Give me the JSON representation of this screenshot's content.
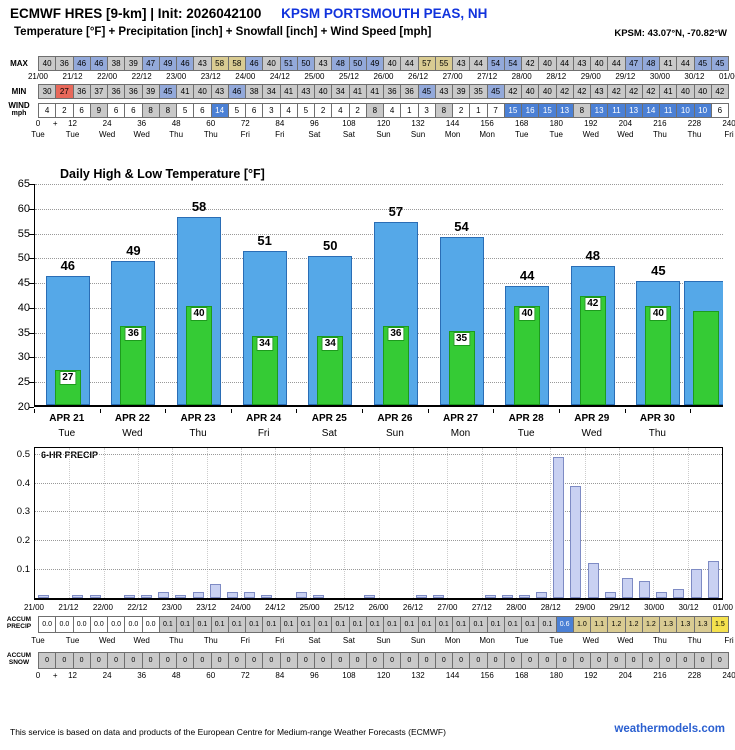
{
  "header": {
    "title": "ECMWF HRES [9-km] | Init: 2026042100",
    "station": "KPSM PORTSMOUTH PEAS, NH",
    "subtitle": "Temperature [°F] + Precipitation [inch] + Snowfall [inch] + Wind Speed [mph]",
    "coords": "KPSM: 43.07°N, -70.82°W"
  },
  "strip": {
    "max_label": "MAX",
    "min_label": "MIN",
    "wind_label": "WIND",
    "wind_unit": "mph",
    "max": [
      40,
      36,
      46,
      46,
      38,
      39,
      47,
      49,
      46,
      43,
      58,
      58,
      46,
      40,
      51,
      50,
      43,
      48,
      50,
      49,
      40,
      44,
      57,
      55,
      43,
      44,
      54,
      54,
      42,
      40,
      44,
      43,
      40,
      44,
      47,
      48,
      41,
      44,
      45,
      45
    ],
    "min": [
      30,
      27,
      36,
      37,
      36,
      36,
      39,
      45,
      41,
      40,
      43,
      46,
      38,
      34,
      41,
      43,
      40,
      34,
      41,
      41,
      36,
      36,
      45,
      43,
      39,
      35,
      45,
      42,
      40,
      40,
      42,
      42,
      43,
      42,
      42,
      42,
      41,
      40,
      40,
      42
    ],
    "wind": [
      4,
      2,
      6,
      9,
      6,
      6,
      8,
      8,
      5,
      6,
      14,
      5,
      6,
      3,
      4,
      5,
      2,
      4,
      2,
      8,
      4,
      1,
      3,
      8,
      2,
      1,
      7,
      15,
      16,
      15,
      13,
      8,
      13,
      11,
      13,
      14,
      11,
      10,
      10,
      6
    ],
    "time_labels": [
      "21/00",
      "21/12",
      "22/00",
      "22/12",
      "23/00",
      "23/12",
      "24/00",
      "24/12",
      "25/00",
      "25/12",
      "26/00",
      "26/12",
      "27/00",
      "27/12",
      "28/00",
      "28/12",
      "29/00",
      "29/12",
      "30/00",
      "30/12",
      "01/00"
    ],
    "hour_labels": [
      "0",
      "+",
      "12",
      "24",
      "36",
      "48",
      "60",
      "72",
      "84",
      "96",
      "108",
      "120",
      "132",
      "144",
      "156",
      "168",
      "180",
      "192",
      "204",
      "216",
      "228",
      "240"
    ],
    "day_labels": [
      "Tue",
      "Tue",
      "Wed",
      "Wed",
      "Thu",
      "Thu",
      "Fri",
      "Fri",
      "Sat",
      "Sat",
      "Sun",
      "Sun",
      "Mon",
      "Mon",
      "Tue",
      "Tue",
      "Wed",
      "Wed",
      "Thu",
      "Thu",
      "Fri"
    ]
  },
  "chart_data": [
    {
      "type": "bar",
      "title": "Daily High & Low Temperature [°F]",
      "categories": [
        "APR 21",
        "APR 22",
        "APR 23",
        "APR 24",
        "APR 25",
        "APR 26",
        "APR 27",
        "APR 28",
        "APR 29",
        "APR 30"
      ],
      "day_names": [
        "Tue",
        "Wed",
        "Thu",
        "Fri",
        "Sat",
        "Sun",
        "Mon",
        "Tue",
        "Wed",
        "Thu"
      ],
      "series": [
        {
          "name": "Daily High",
          "color": "#55a8e8",
          "values": [
            46,
            49,
            58,
            51,
            50,
            57,
            54,
            44,
            48,
            45
          ]
        },
        {
          "name": "Daily Low",
          "color": "#35cb35",
          "values": [
            27,
            36,
            40,
            34,
            34,
            36,
            35,
            40,
            42,
            40
          ]
        }
      ],
      "partial_day": {
        "high": 45,
        "low": 39
      },
      "xlabel": "",
      "ylabel": "",
      "ylim": [
        20,
        65
      ],
      "yticks": [
        20,
        25,
        30,
        35,
        40,
        45,
        50,
        55,
        60,
        65
      ],
      "grid": "dotted horizontal"
    },
    {
      "type": "bar",
      "title": "6-HR PRECIP",
      "x_labels": [
        "21/00",
        "21/12",
        "22/00",
        "22/12",
        "23/00",
        "23/12",
        "24/00",
        "24/12",
        "25/00",
        "25/12",
        "26/00",
        "26/12",
        "27/00",
        "27/12",
        "28/00",
        "28/12",
        "29/00",
        "29/12",
        "30/00",
        "30/12",
        "01/00"
      ],
      "values": [
        0.01,
        0,
        0.01,
        0.01,
        0,
        0.01,
        0.01,
        0.02,
        0.01,
        0.02,
        0.05,
        0.02,
        0.02,
        0.01,
        0,
        0.02,
        0.01,
        0,
        0,
        0.01,
        0,
        0,
        0.01,
        0.01,
        0,
        0,
        0.01,
        0.01,
        0.01,
        0.02,
        0.49,
        0.39,
        0.12,
        0.02,
        0.07,
        0.06,
        0.02,
        0.03,
        0.1,
        0.13
      ],
      "xlabel": "",
      "ylabel": "",
      "ylim": [
        0,
        0.52
      ],
      "yticks": [
        0.1,
        0.2,
        0.3,
        0.4,
        0.5
      ],
      "grid": "dotted"
    }
  ],
  "accum": {
    "precip_label_1": "ACCUM",
    "precip_label_2": "PRECIP",
    "snow_label_1": "ACCUM",
    "snow_label_2": "SNOW",
    "precip": [
      "0.0",
      "0.0",
      "0.0",
      "0.0",
      "0.0",
      "0.0",
      "0.0",
      "0.1",
      "0.1",
      "0.1",
      "0.1",
      "0.1",
      "0.1",
      "0.1",
      "0.1",
      "0.1",
      "0.1",
      "0.1",
      "0.1",
      "0.1",
      "0.1",
      "0.1",
      "0.1",
      "0.1",
      "0.1",
      "0.1",
      "0.1",
      "0.1",
      "0.1",
      "0.1",
      "0.6",
      "1.0",
      "1.1",
      "1.2",
      "1.2",
      "1.2",
      "1.3",
      "1.3",
      "1.3",
      "1.5"
    ],
    "snow": [
      "0",
      "0",
      "0",
      "0",
      "0",
      "0",
      "0",
      "0",
      "0",
      "0",
      "0",
      "0",
      "0",
      "0",
      "0",
      "0",
      "0",
      "0",
      "0",
      "0",
      "0",
      "0",
      "0",
      "0",
      "0",
      "0",
      "0",
      "0",
      "0",
      "0",
      "0",
      "0",
      "0",
      "0",
      "0",
      "0",
      "0",
      "0",
      "0",
      "0"
    ]
  },
  "footer": {
    "disclaimer": "This service is based on data and products of the European Centre for Medium-range Weather Forecasts (ECMWF)",
    "site": "weathermodels.com"
  },
  "colors": {
    "station_blue": "#1133dd",
    "site_blue": "#2a5fd0",
    "high_bar": "#55a8e8",
    "low_bar": "#35cb35",
    "precip_bar": "#c9d1f2",
    "cell_gray": "#c9c9c9",
    "cell_periwinkle": "#93a9da",
    "cell_tan": "#d9cb92",
    "cell_red": "#e8685a",
    "cell_blue": "#4b80d5",
    "cell_yellow": "#f4e14e"
  }
}
